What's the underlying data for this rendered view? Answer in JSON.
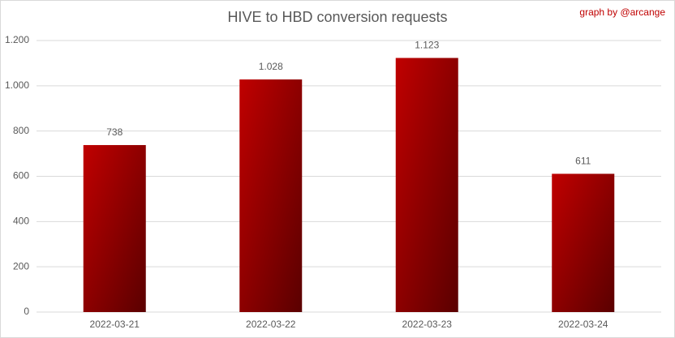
{
  "chart_data": {
    "type": "bar",
    "title": "HIVE to HBD conversion requests",
    "annotation": "graph by @arcange",
    "categories": [
      "2022-03-21",
      "2022-03-22",
      "2022-03-23",
      "2022-03-24"
    ],
    "values": [
      738,
      1028,
      1123,
      611
    ],
    "value_labels": [
      "738",
      "1.028",
      "1.123",
      "611"
    ],
    "color": "#c00000",
    "ylim": [
      0,
      1200
    ],
    "yticks": [
      0,
      200,
      400,
      600,
      800,
      {
        "value": 1000,
        "label": "1.000"
      },
      {
        "value": 1200,
        "label": "1.200"
      }
    ],
    "grid": true
  }
}
